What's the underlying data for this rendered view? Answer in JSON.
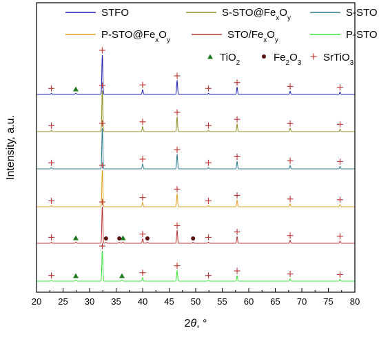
{
  "chart_data": {
    "type": "line",
    "xlabel_parts": [
      "2",
      "θ",
      ", °"
    ],
    "ylabel": "Intensity, a.u.",
    "xlim": [
      20,
      80
    ],
    "xticks": [
      "20",
      "25",
      "30",
      "35",
      "40",
      "45",
      "50",
      "55",
      "60",
      "65",
      "70",
      "75",
      "80"
    ],
    "series": [
      {
        "name": "STFO",
        "legend": [
          "STFO"
        ],
        "color": "#1f1fb4",
        "order": 0
      },
      {
        "name": "S-STO@FexOy",
        "legend": [
          "S-STO@Fe",
          "x",
          "O",
          "y"
        ],
        "color": "#8c8c1e",
        "order": 1
      },
      {
        "name": "S-STO",
        "legend": [
          "S-STO"
        ],
        "color": "#2a7a8e",
        "order": 2
      },
      {
        "name": "P-STO@FexOy",
        "legend": [
          "P-STO@Fe",
          "x",
          "O",
          "y"
        ],
        "color": "#e0a020",
        "order": 3
      },
      {
        "name": "STO/FexOy",
        "legend": [
          "STO/Fe",
          "x",
          "O",
          "y"
        ],
        "color": "#b83232",
        "order": 4
      },
      {
        "name": "P-STO",
        "legend": [
          "P-STO"
        ],
        "color": "#3ee23e",
        "order": 5
      }
    ],
    "peaks": {
      "srtio3": [
        22.8,
        32.4,
        40.0,
        46.5,
        52.4,
        57.8,
        67.8,
        77.2
      ],
      "heights": [
        0.03,
        1.0,
        0.12,
        0.35,
        0.03,
        0.18,
        0.08,
        0.06
      ]
    },
    "markers": {
      "STFO": {
        "tio2": [
          27.4
        ]
      },
      "STO/FexOy": {
        "tio2": [
          27.4,
          36.3
        ],
        "fe2o3": [
          33.1,
          35.6,
          40.9,
          49.5
        ]
      },
      "P-STO": {
        "tio2": [
          27.4,
          36.1
        ]
      }
    },
    "phase_legend": [
      {
        "key": "tio2",
        "label": [
          "TiO",
          "2"
        ],
        "color": "#1e7a1e"
      },
      {
        "key": "fe2o3",
        "label": [
          "Fe",
          "2",
          "O",
          "3"
        ],
        "color": "#5a0e0e"
      },
      {
        "key": "srtio3",
        "label": [
          "SrTiO",
          "3"
        ],
        "color": "#c23b3b"
      }
    ]
  }
}
